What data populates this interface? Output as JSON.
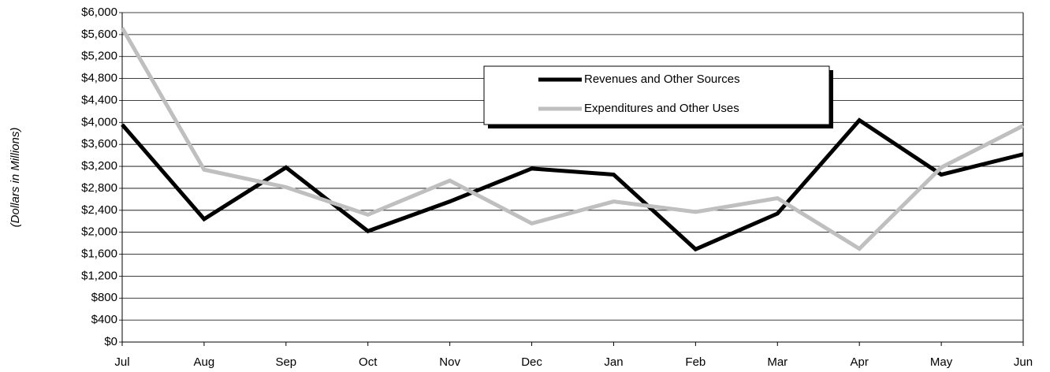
{
  "chart_data": {
    "type": "line",
    "y_label": "(Dollars in Millions)",
    "categories": [
      "Jul",
      "Aug",
      "Sep",
      "Oct",
      "Nov",
      "Dec",
      "Jan",
      "Feb",
      "Mar",
      "Apr",
      "May",
      "Jun"
    ],
    "series": [
      {
        "name": "Revenues and Other Sources",
        "color": "#000000",
        "values": [
          3960,
          2240,
          3180,
          2020,
          2560,
          3160,
          3050,
          1690,
          2340,
          4040,
          3050,
          3420
        ]
      },
      {
        "name": "Expenditures and Other Uses",
        "color": "#bfbfbf",
        "values": [
          5720,
          3140,
          2820,
          2320,
          2940,
          2160,
          2560,
          2370,
          2620,
          1700,
          3180,
          3940
        ]
      }
    ],
    "ylim": [
      0,
      6000
    ],
    "yticks": [
      {
        "value": 0,
        "label": "$0"
      },
      {
        "value": 400,
        "label": "$400"
      },
      {
        "value": 800,
        "label": "$800"
      },
      {
        "value": 1200,
        "label": "$1,200"
      },
      {
        "value": 1600,
        "label": "$1,600"
      },
      {
        "value": 2000,
        "label": "$2,000"
      },
      {
        "value": 2400,
        "label": "$2,400"
      },
      {
        "value": 2800,
        "label": "$2,800"
      },
      {
        "value": 3200,
        "label": "$3,200"
      },
      {
        "value": 3600,
        "label": "$3,600"
      },
      {
        "value": 4000,
        "label": "$4,000"
      },
      {
        "value": 4400,
        "label": "$4,400"
      },
      {
        "value": 4800,
        "label": "$4,800"
      },
      {
        "value": 5200,
        "label": "$5,200"
      },
      {
        "value": 5600,
        "label": "$5,600"
      },
      {
        "value": 6000,
        "label": "$6,000"
      }
    ],
    "grid": true
  }
}
